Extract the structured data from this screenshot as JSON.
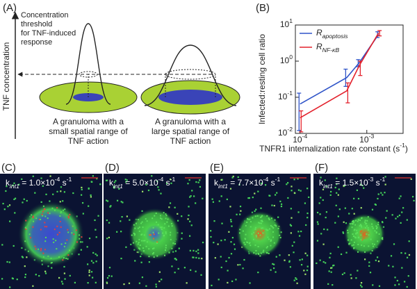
{
  "panel_a": {
    "label": "(A)",
    "y_axis_label": "TNF concentration",
    "threshold_lines": [
      "Concentration",
      "threshold",
      "for TNF-induced",
      "response"
    ],
    "left_caption": [
      "A granuloma with a",
      "small spatial range of",
      "TNF action"
    ],
    "right_caption": [
      "A granuloma with a",
      "large spatial range of",
      "TNF action"
    ]
  },
  "chart_data": {
    "type": "line",
    "label": "(B)",
    "ylabel": "Infected:resting cell ratio",
    "xlabel": "TNFR1 internalization rate constant (s^{-1})",
    "log_x": true,
    "log_y": true,
    "x": [
      0.0001,
      0.0005,
      0.00077,
      0.0015
    ],
    "series": [
      {
        "name": "R",
        "subscript": "apoptosis",
        "color": "#2f54c8",
        "values": [
          0.065,
          0.35,
          0.9,
          5.5
        ],
        "lower": [
          0.012,
          0.2,
          0.7,
          4.5
        ],
        "upper": [
          0.13,
          0.6,
          1.1,
          6.5
        ]
      },
      {
        "name": "R",
        "subscript": "NF-κB",
        "color": "#e3202b",
        "values": [
          0.027,
          0.15,
          0.75,
          6
        ],
        "lower": [
          0.011,
          0.07,
          0.4,
          5
        ],
        "upper": [
          0.042,
          0.25,
          1.0,
          7
        ]
      }
    ],
    "xlim": [
      8.5e-05,
      0.0035
    ],
    "ylim": [
      0.01,
      10
    ],
    "xticks": [
      {
        "value": 0.0001,
        "label": "10^{-4}"
      },
      {
        "value": 0.001,
        "label": "10^{-3}"
      }
    ],
    "yticks": [
      {
        "value": 0.01,
        "label": "10^{-2}"
      },
      {
        "value": 0.1,
        "label": "10^{-1}"
      },
      {
        "value": 1,
        "label": "10^{0}"
      },
      {
        "value": 10,
        "label": "10^{1}"
      }
    ],
    "legend": "upper left"
  },
  "panels": [
    {
      "label": "(C)",
      "k": "k_{int1} = 1.0×10^{-4} s^{-1}"
    },
    {
      "label": "(D)",
      "k": "k_{int1} = 5.0×10^{-4} s^{-1}"
    },
    {
      "label": "(E)",
      "k": "k_{int1} = 7.7×10^{-4} s^{-1}"
    },
    {
      "label": "(F)",
      "k": "k_{int1} = 1.5×10^{-3} s^{-1}"
    }
  ]
}
